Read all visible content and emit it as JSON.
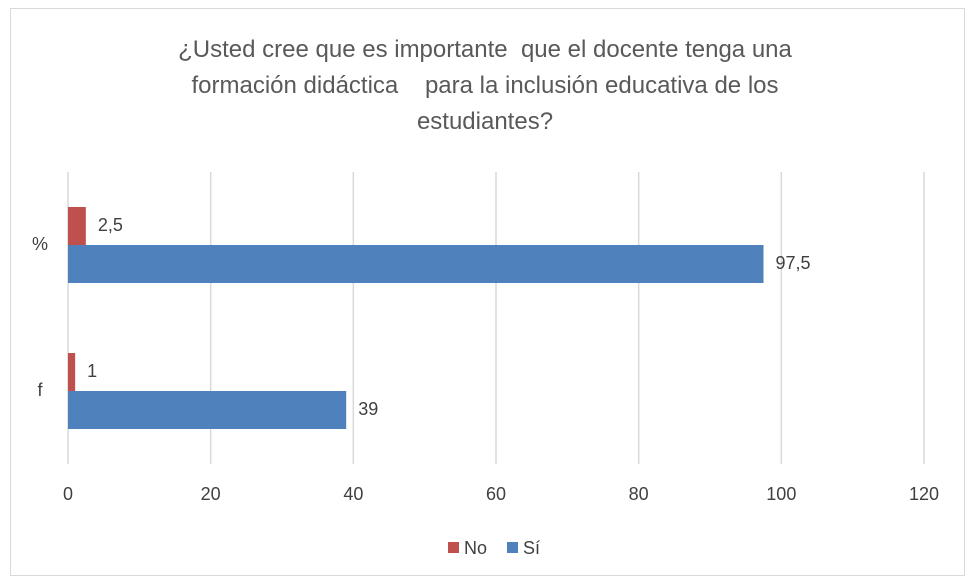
{
  "chart_data": {
    "type": "hbar",
    "title": "¿Usted cree que es importante  que el docente tenga una formación didáctica    para la inclusión educativa de los estudiantes?",
    "categories": [
      "%",
      "f"
    ],
    "series": [
      {
        "name": "No",
        "color": "#c0504d",
        "values": [
          2.5,
          1
        ],
        "value_labels": [
          "2,5",
          "1"
        ]
      },
      {
        "name": "Sí",
        "color": "#4f81bd",
        "values": [
          97.5,
          39
        ],
        "value_labels": [
          "97,5",
          "39"
        ]
      }
    ],
    "xlim": [
      0,
      120
    ],
    "xticks": [
      0,
      20,
      40,
      60,
      80,
      100,
      120
    ],
    "grid": true,
    "legend": "bottom"
  }
}
